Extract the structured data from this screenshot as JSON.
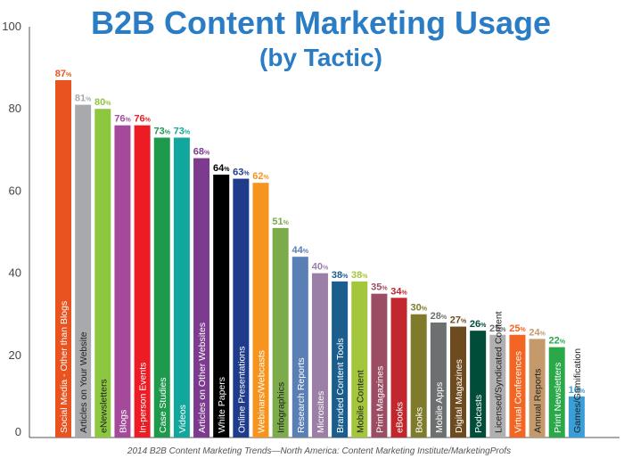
{
  "chart_data": {
    "type": "bar",
    "title": "B2B Content Marketing Usage",
    "subtitle": "(by Tactic)",
    "source": "2014 B2B Content Marketing Trends—North America: Content Marketing Institute/MarketingProfs",
    "ylim": [
      0,
      100
    ],
    "yticks": [
      "0",
      "20",
      "40",
      "60",
      "80",
      "100"
    ],
    "value_suffix": "%",
    "categories": [
      "Social Media - Other than Blogs",
      "Articles on Your Website",
      "eNewsletters",
      "Blogs",
      "In-person Events",
      "Case Studies",
      "Videos",
      "Articles on Other Websites",
      "White Papers",
      "Online Presentations",
      "Webinars/Webcasts",
      "Infographics",
      "Research Reports",
      "Microsites",
      "Branded Content Tools",
      "Mobile Content",
      "Print Magazines",
      "eBooks",
      "Books",
      "Mobile Apps",
      "Digital Magazines",
      "Podcasts",
      "Licensed/Syndicated Content",
      "Virtual Conferences",
      "Annual Reports",
      "Print Newsletters",
      "Games/Gamification"
    ],
    "values": [
      87,
      81,
      80,
      76,
      76,
      73,
      73,
      68,
      64,
      63,
      62,
      51,
      44,
      40,
      38,
      38,
      35,
      34,
      30,
      28,
      27,
      26,
      25,
      25,
      24,
      22,
      10
    ],
    "colors": [
      "#e8531f",
      "#a8a9ad",
      "#8dc63f",
      "#a54a9a",
      "#ed1c24",
      "#1e9a4d",
      "#12a79d",
      "#7d3b8f",
      "#000000",
      "#1f3b8c",
      "#f7941d",
      "#7bab4a",
      "#5a7fb5",
      "#9c7fa6",
      "#1b5e8e",
      "#a4c63c",
      "#9a4d63",
      "#c2272d",
      "#7f7b2a",
      "#6d7070",
      "#6e4b1f",
      "#004d3a",
      "#b0b0b0",
      "#f26522",
      "#c49a6c",
      "#2aa84a",
      "#3a9fd8"
    ],
    "label_colors": [
      "#e8531f",
      "#a8a9ad",
      "#8dc63f",
      "#a54a9a",
      "#ed1c24",
      "#1e9a4d",
      "#12a79d",
      "#7d3b8f",
      "#000000",
      "#1f3b8c",
      "#f7941d",
      "#7bab4a",
      "#5a7fb5",
      "#9c7fa6",
      "#1b5e8e",
      "#a4c63c",
      "#9a4d63",
      "#c2272d",
      "#7f7b2a",
      "#6d7070",
      "#6e4b1f",
      "#004d3a",
      "#6d6e71",
      "#f26522",
      "#c49a6c",
      "#2aa84a",
      "#3a9fd8"
    ],
    "bar_text_colors": [
      "#ffffff",
      "#222222",
      "#222222",
      "#ffffff",
      "#ffffff",
      "#ffffff",
      "#ffffff",
      "#ffffff",
      "#ffffff",
      "#ffffff",
      "#ffffff",
      "#222222",
      "#ffffff",
      "#ffffff",
      "#ffffff",
      "#222222",
      "#ffffff",
      "#ffffff",
      "#ffffff",
      "#ffffff",
      "#ffffff",
      "#ffffff",
      "#222222",
      "#ffffff",
      "#222222",
      "#ffffff",
      "#222222"
    ],
    "grid": false,
    "legend": "none"
  }
}
